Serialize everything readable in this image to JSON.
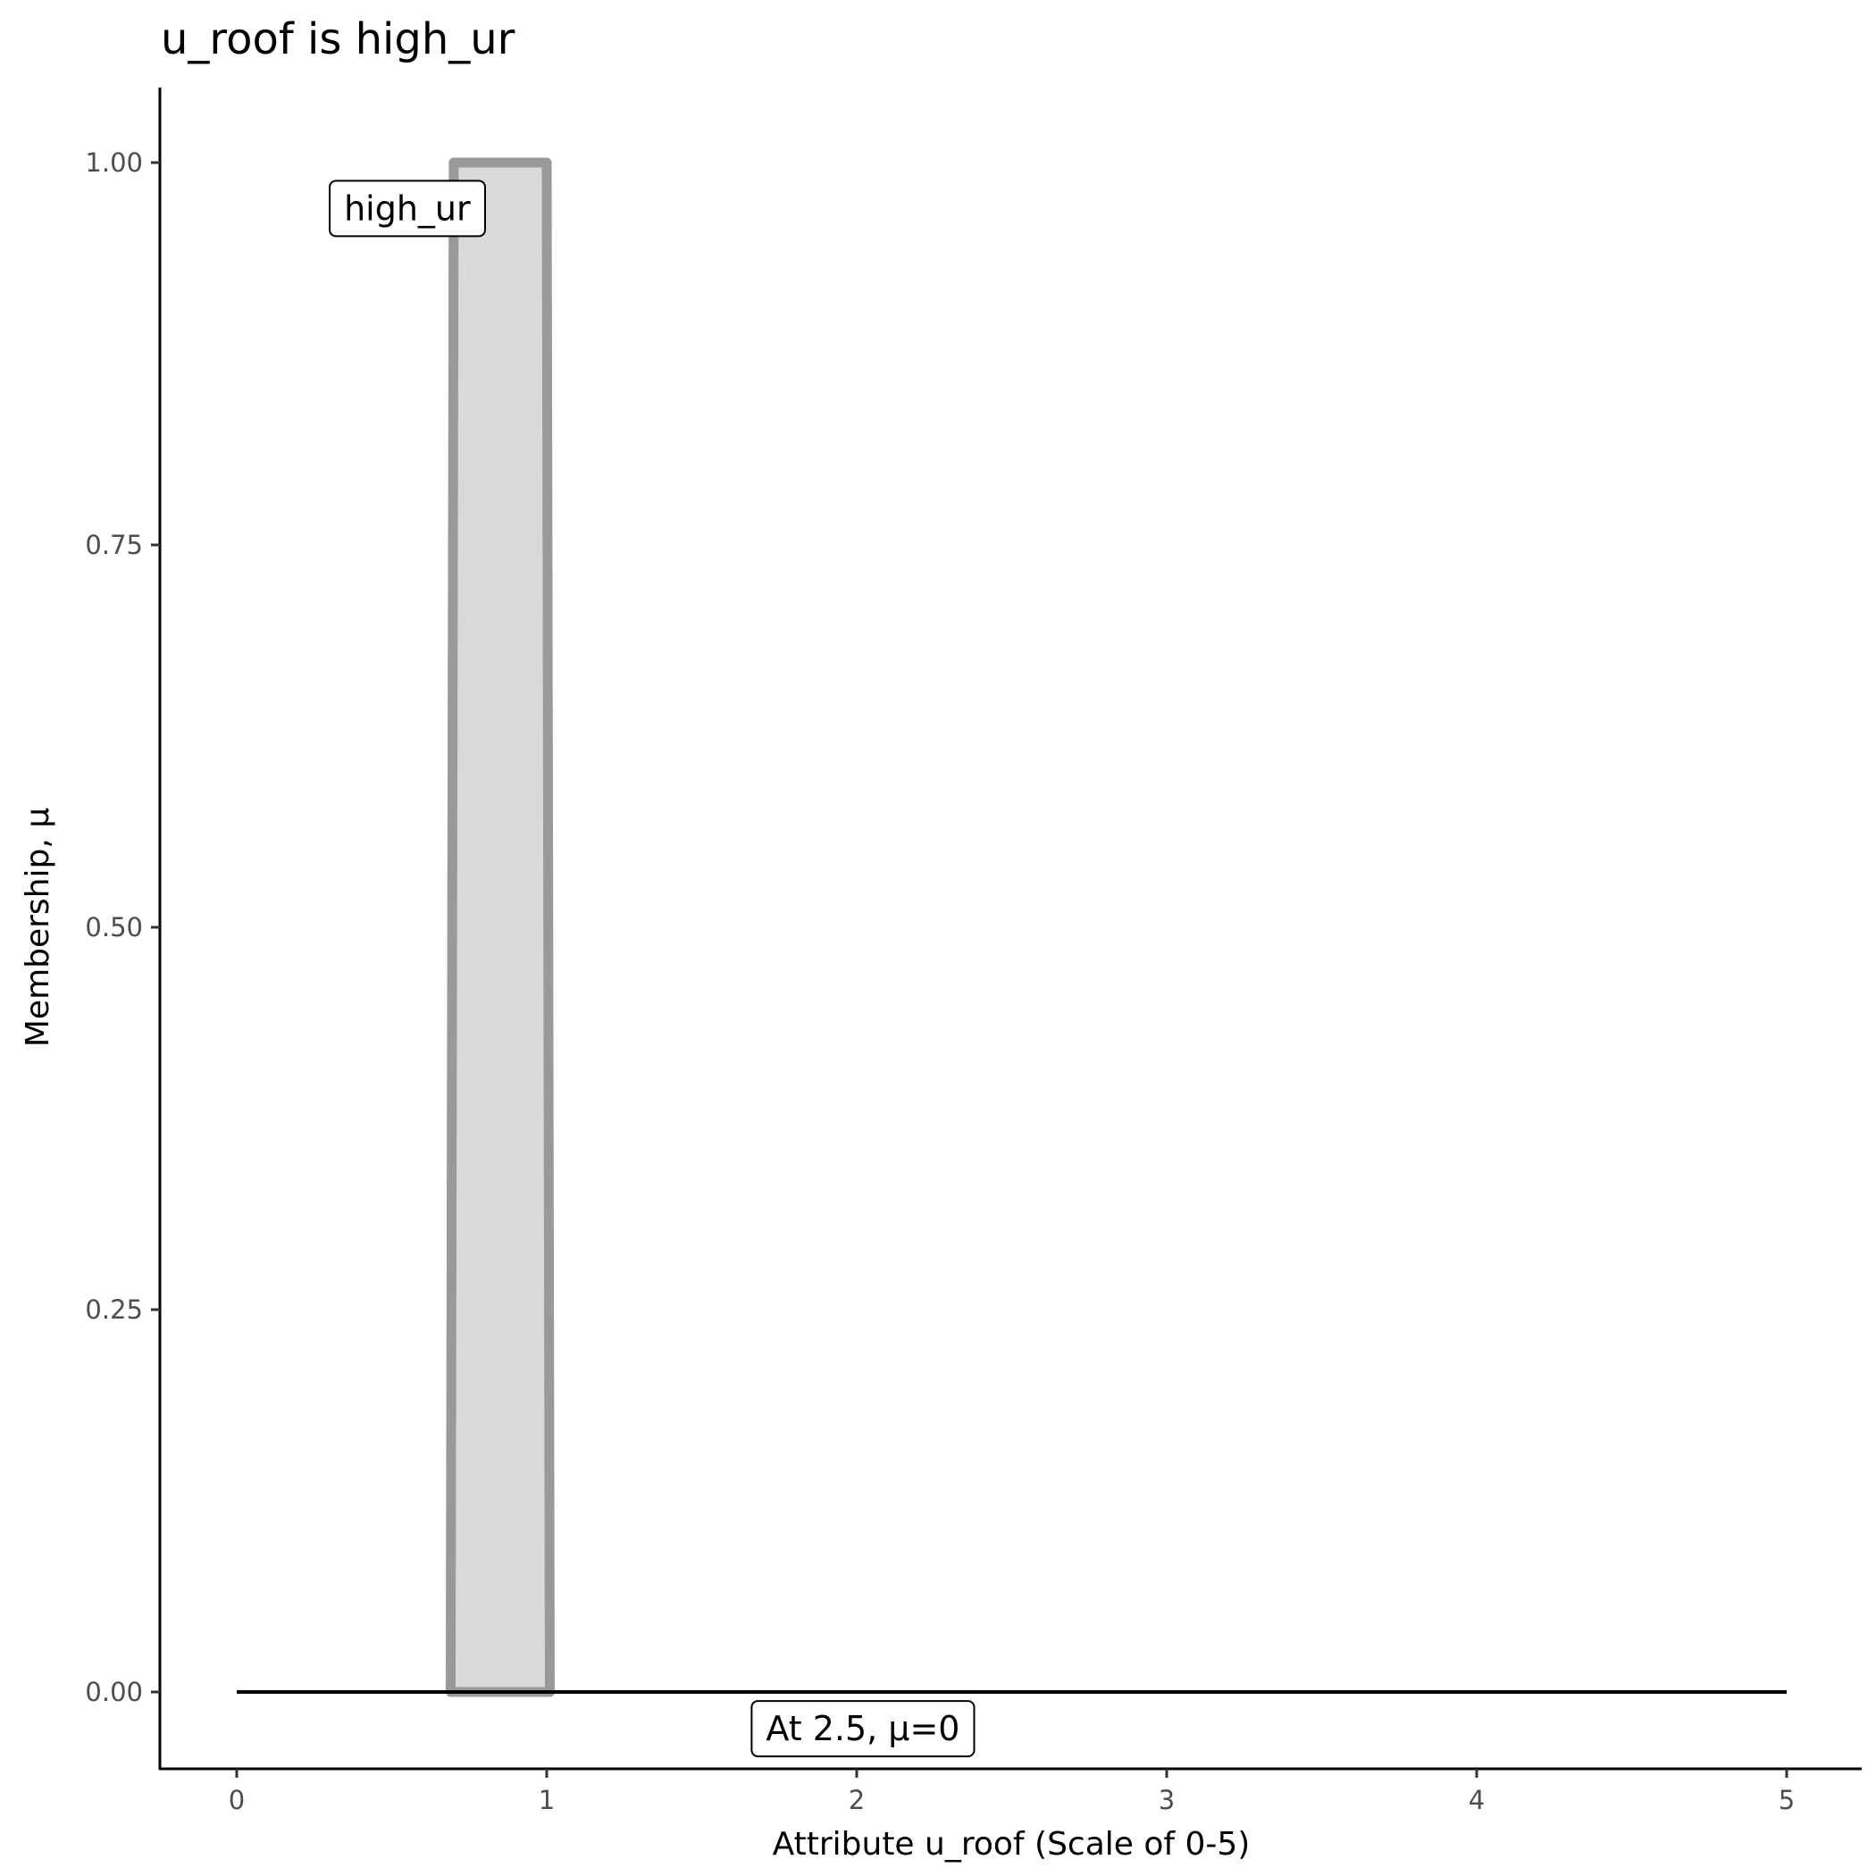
{
  "chart_data": {
    "type": "area",
    "title": "u_roof is high_ur",
    "xlabel": "Attribute u_roof (Scale of 0-5)",
    "ylabel": "Membership, μ",
    "xlim": [
      -0.25,
      5.25
    ],
    "ylim": [
      -0.05,
      1.05
    ],
    "x_ticks": [
      "0",
      "1",
      "2",
      "3",
      "4",
      "5"
    ],
    "x_tick_values": [
      0,
      1,
      2,
      3,
      4,
      5
    ],
    "y_ticks": [
      "0.00",
      "0.25",
      "0.50",
      "0.75",
      "1.00"
    ],
    "y_tick_values": [
      0,
      0.25,
      0.5,
      0.75,
      1
    ],
    "grid": false,
    "series": [
      {
        "name": "high_ur",
        "x": [
          0.69,
          0.7,
          1.0,
          1.01
        ],
        "y": [
          0,
          1,
          1,
          0
        ],
        "fill": "#d9d9d9",
        "stroke": "#999999"
      }
    ],
    "reference_line": {
      "x": [
        0,
        5
      ],
      "y": [
        0,
        0
      ],
      "color": "#000000"
    },
    "annotations": [
      {
        "text": "high_ur",
        "x": 0.55,
        "y": 0.97
      },
      {
        "text": "At 2.5, μ=0",
        "x": 2.02,
        "y": -0.024
      }
    ]
  }
}
